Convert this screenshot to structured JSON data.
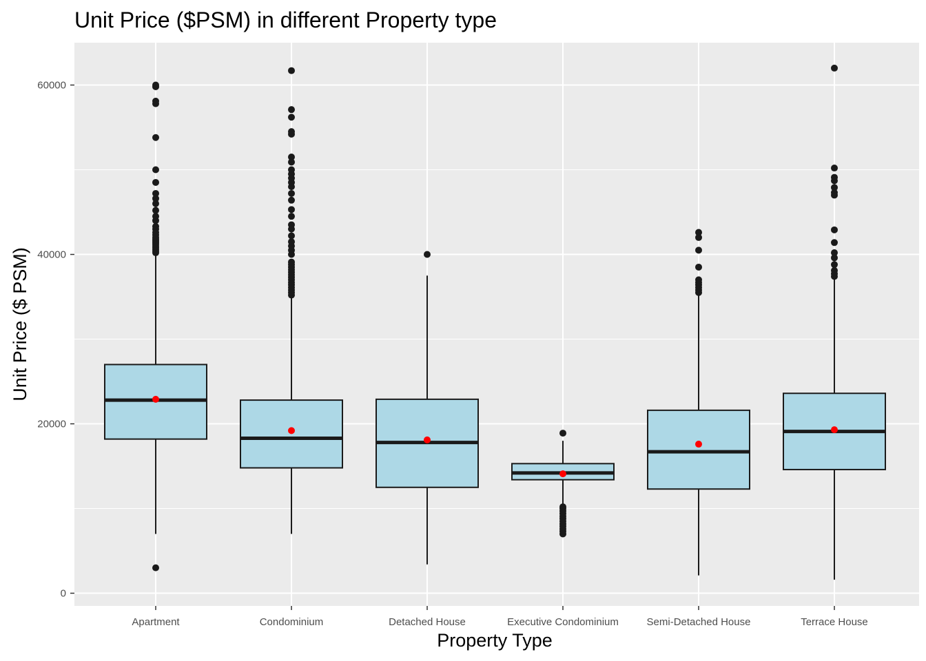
{
  "chart_data": {
    "type": "boxplot",
    "title": "Unit Price ($PSM) in different Property type",
    "xlabel": "Property Type",
    "ylabel": "Unit Price ($ PSM)",
    "ylim": [
      -1500,
      65000
    ],
    "yticks": [
      0,
      20000,
      40000,
      60000
    ],
    "grid": true,
    "colors": {
      "panel": "#ebebeb",
      "grid": "#ffffff",
      "box_fill": "#add8e6",
      "box_line": "#1a1a1a",
      "mean_point": "#ff0000",
      "outlier": "#1a1a1a"
    },
    "categories": [
      "Apartment",
      "Condominium",
      "Detached House",
      "Executive Condominium",
      "Semi-Detached House",
      "Terrace House"
    ],
    "boxes": [
      {
        "category": "Apartment",
        "whisker_low": 7000,
        "q1": 18200,
        "median": 22800,
        "q3": 27000,
        "whisker_high": 40000,
        "mean": 22900,
        "outliers": [
          3000,
          40200,
          40400,
          40600,
          40800,
          41000,
          41200,
          41400,
          41600,
          41800,
          42000,
          42300,
          42600,
          43000,
          43300,
          44000,
          44500,
          45200,
          46000,
          46600,
          47200,
          48500,
          50000,
          53800,
          57800,
          58100,
          59800,
          60000
        ]
      },
      {
        "category": "Condominium",
        "whisker_low": 7000,
        "q1": 14800,
        "median": 18300,
        "q3": 22800,
        "whisker_high": 35000,
        "mean": 19200,
        "outliers": [
          35200,
          35500,
          35800,
          36100,
          36400,
          36700,
          37000,
          37300,
          37600,
          37900,
          38200,
          38500,
          38800,
          39100,
          40000,
          40500,
          41000,
          41500,
          42200,
          43000,
          43500,
          44500,
          45300,
          46400,
          47200,
          48000,
          48500,
          49000,
          49500,
          50000,
          50900,
          51500,
          54200,
          54500,
          56200,
          57100,
          61700
        ]
      },
      {
        "category": "Detached House",
        "whisker_low": 3400,
        "q1": 12500,
        "median": 17800,
        "q3": 22900,
        "whisker_high": 37500,
        "mean": 18100,
        "outliers": [
          40000
        ]
      },
      {
        "category": "Executive Condominium",
        "whisker_low": 10500,
        "q1": 13400,
        "median": 14200,
        "q3": 15300,
        "whisker_high": 18000,
        "mean": 14100,
        "outliers": [
          7000,
          7300,
          7600,
          7900,
          8200,
          8500,
          8800,
          9100,
          9400,
          9700,
          10000,
          10200,
          18900
        ]
      },
      {
        "category": "Semi-Detached House",
        "whisker_low": 2100,
        "q1": 12300,
        "median": 16700,
        "q3": 21600,
        "whisker_high": 35300,
        "mean": 17600,
        "outliers": [
          35500,
          35800,
          36100,
          36400,
          36700,
          37000,
          38500,
          40500,
          42000,
          42600
        ]
      },
      {
        "category": "Terrace House",
        "whisker_low": 1600,
        "q1": 14600,
        "median": 19100,
        "q3": 23600,
        "whisker_high": 37200,
        "mean": 19300,
        "outliers": [
          37400,
          37700,
          38100,
          38800,
          39600,
          40200,
          41400,
          42900,
          47000,
          47300,
          47900,
          48700,
          49100,
          50200,
          62000
        ]
      }
    ]
  }
}
